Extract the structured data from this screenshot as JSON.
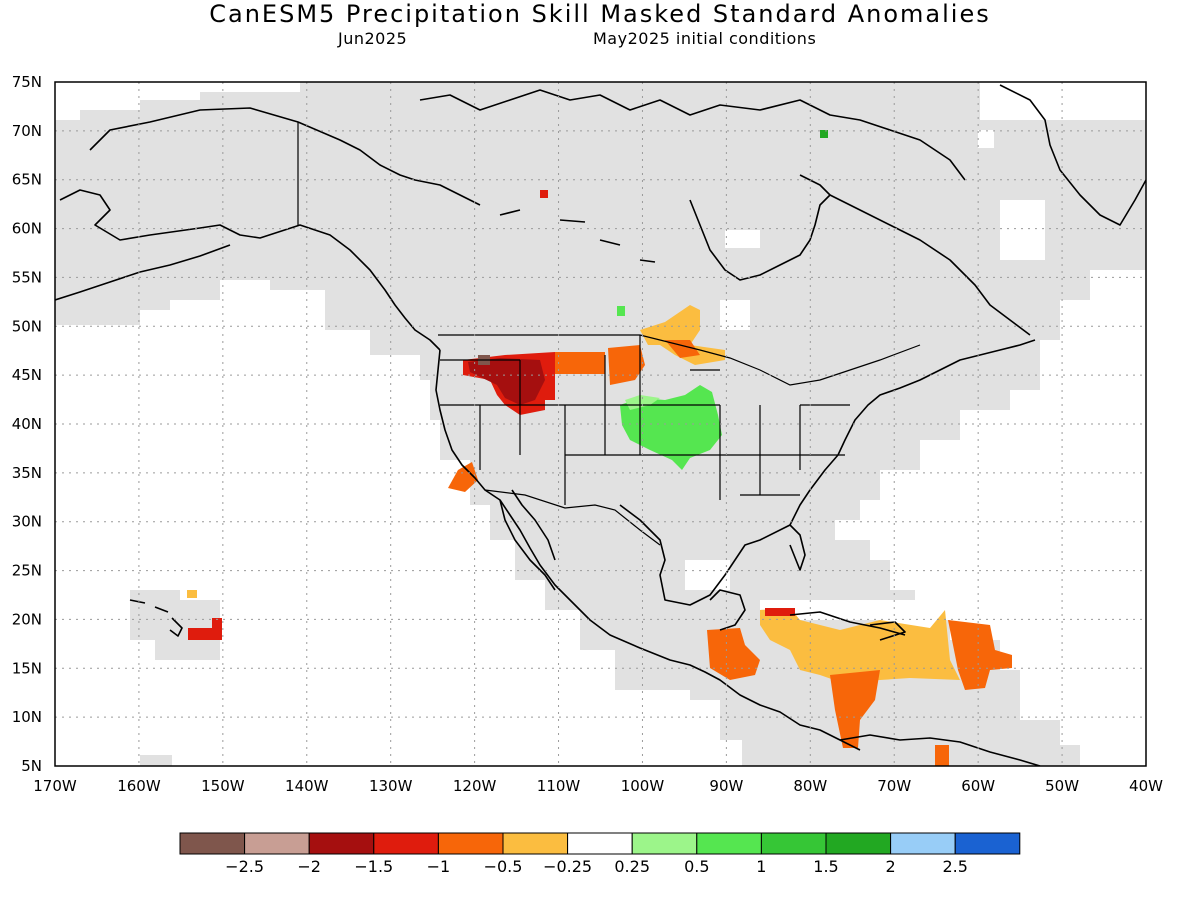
{
  "title": "CanESM5 Precipitation Skill Masked Standard Anomalies",
  "subtitle_left": "Jun2025",
  "subtitle_right": "May2025 initial conditions",
  "map": {
    "lon_range": [
      -170,
      -40
    ],
    "lat_range": [
      5,
      75
    ],
    "lat_ticks": [
      75,
      70,
      65,
      60,
      55,
      50,
      45,
      40,
      35,
      30,
      25,
      20,
      15,
      10,
      5
    ],
    "lat_labels": [
      "75N",
      "70N",
      "65N",
      "60N",
      "55N",
      "50N",
      "45N",
      "40N",
      "35N",
      "30N",
      "25N",
      "20N",
      "15N",
      "10N",
      "5N"
    ],
    "lon_ticks": [
      -170,
      -160,
      -150,
      -140,
      -130,
      -120,
      -110,
      -100,
      -90,
      -80,
      -70,
      -60,
      -50,
      -40
    ],
    "lon_labels": [
      "170W",
      "160W",
      "150W",
      "140W",
      "130W",
      "120W",
      "110W",
      "100W",
      "90W",
      "80W",
      "70W",
      "60W",
      "50W",
      "40W"
    ],
    "gridlines": "dotted",
    "land_mask_color": "#e1e1e1",
    "coast_color": "#000000"
  },
  "colorbar": {
    "colors": [
      "#7f564c",
      "#c89e94",
      "#a50f0f",
      "#df1c0d",
      "#f76609",
      "#fbbd40",
      "#ffffff",
      "#9cf58a",
      "#55e650",
      "#36c636",
      "#22a822",
      "#98cdf7",
      "#1a62d2"
    ],
    "labels": [
      "−2.5",
      "−2",
      "−1.5",
      "−1",
      "−0.5",
      "−0.25",
      "0.25",
      "0.5",
      "1",
      "1.5",
      "2",
      "2.5"
    ]
  },
  "anomaly_regions": [
    {
      "name": "northwest-us-dry",
      "level": -1.5,
      "color": "#a50f0f"
    },
    {
      "name": "northwest-us-dry-fringe",
      "level": -1,
      "color": "#df1c0d"
    },
    {
      "name": "northern-plains-dry",
      "level": -0.5,
      "color": "#f76609"
    },
    {
      "name": "great-lakes-dry",
      "level": -0.25,
      "color": "#fbbd40"
    },
    {
      "name": "central-plains-wet",
      "level": 0.5,
      "color": "#55e650"
    },
    {
      "name": "southern-california-dry",
      "level": -0.5,
      "color": "#f76609"
    },
    {
      "name": "hawaii-dry",
      "level": -1,
      "color": "#df1c0d"
    },
    {
      "name": "caribbean-dry",
      "level": -0.25,
      "color": "#fbbd40"
    },
    {
      "name": "central-america-dry",
      "level": -0.5,
      "color": "#f76609"
    },
    {
      "name": "lesser-antilles-dry",
      "level": -0.5,
      "color": "#f76609"
    }
  ]
}
